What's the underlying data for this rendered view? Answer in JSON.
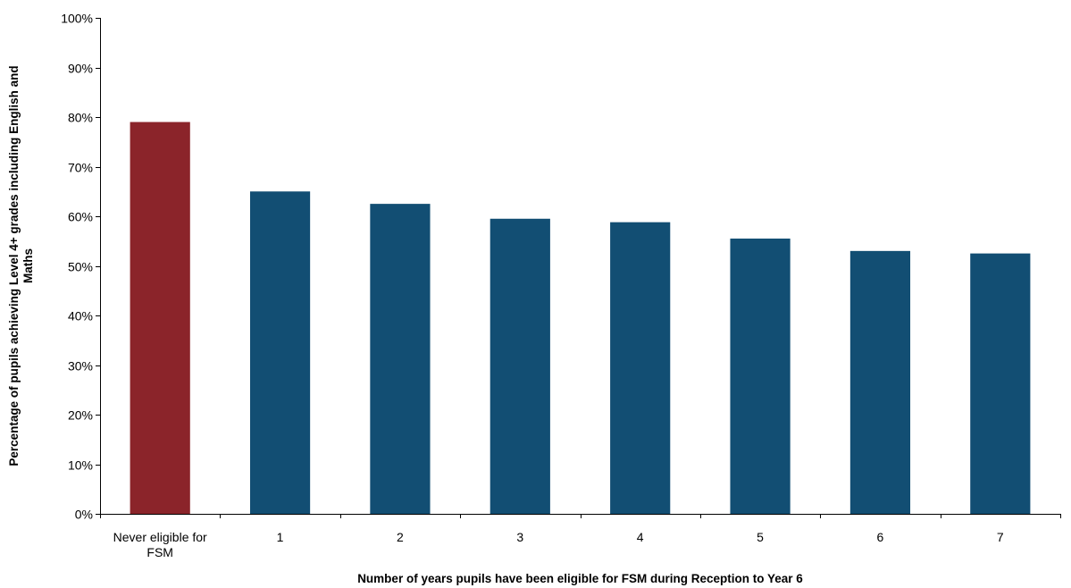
{
  "chart_data": {
    "type": "bar",
    "categories": [
      [
        "Never eligible for",
        "FSM"
      ],
      [
        "1"
      ],
      [
        "2"
      ],
      [
        "3"
      ],
      [
        "4"
      ],
      [
        "5"
      ],
      [
        "6"
      ],
      [
        "7"
      ]
    ],
    "values": [
      79,
      65,
      62.5,
      59.5,
      58.8,
      55.5,
      53,
      52.5
    ],
    "bar_colors": [
      "#8B242A",
      "#124E73",
      "#124E73",
      "#124E73",
      "#124E73",
      "#124E73",
      "#124E73",
      "#124E73"
    ],
    "ylim": [
      0,
      100
    ],
    "yticks": [
      0,
      10,
      20,
      30,
      40,
      50,
      60,
      70,
      80,
      90,
      100
    ],
    "ytick_labels": [
      "0%",
      "10%",
      "20%",
      "30%",
      "40%",
      "50%",
      "60%",
      "70%",
      "80%",
      "90%",
      "100%"
    ],
    "xlabel": "Number of years pupils have been eligible for FSM during Reception to Year 6",
    "ylabel": [
      "Percentage of pupils achieving Level 4+ grades including English and",
      "Maths"
    ],
    "grid": false,
    "legend": "none"
  }
}
